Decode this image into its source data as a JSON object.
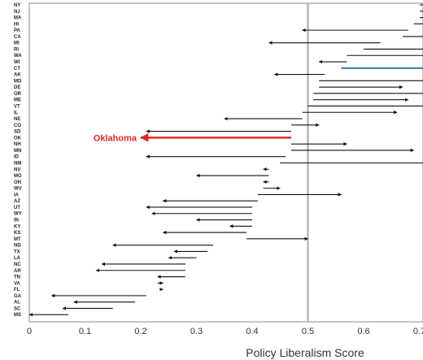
{
  "chart_data": {
    "type": "arrow-range",
    "xlabel": "Policy Liberalism Score",
    "xlim": [
      0,
      0.7
    ],
    "xticks": [
      "0",
      "0.1",
      "0.2",
      "0.3",
      "0.4",
      "0.5",
      "0.6",
      "0.7"
    ],
    "reference_line": 0.5,
    "highlight": {
      "state": "OK",
      "label": "Oklahoma",
      "color": "#e32626"
    },
    "colors": {
      "arrow": "#111111",
      "ct": "#2d6ea5",
      "reference": "#b8b8b8",
      "frame": "#888888"
    },
    "states": [
      {
        "state": "NY",
        "from": 0.71,
        "to": 0.71
      },
      {
        "state": "NJ",
        "from": 0.71,
        "to": 0.71
      },
      {
        "state": "MA",
        "from": 0.71,
        "to": 0.71
      },
      {
        "state": "HI",
        "from": 0.69,
        "to": 0.71
      },
      {
        "state": "PA",
        "from": 0.68,
        "to": 0.49
      },
      {
        "state": "CA",
        "from": 0.67,
        "to": 0.71
      },
      {
        "state": "MI",
        "from": 0.63,
        "to": 0.43
      },
      {
        "state": "RI",
        "from": 0.6,
        "to": 0.71
      },
      {
        "state": "WA",
        "from": 0.57,
        "to": 0.71
      },
      {
        "state": "WI",
        "from": 0.57,
        "to": 0.52
      },
      {
        "state": "CT",
        "from": 0.56,
        "to": 0.71
      },
      {
        "state": "AK",
        "from": 0.53,
        "to": 0.44
      },
      {
        "state": "MD",
        "from": 0.52,
        "to": 0.71
      },
      {
        "state": "DE",
        "from": 0.52,
        "to": 0.67
      },
      {
        "state": "OR",
        "from": 0.51,
        "to": 0.71
      },
      {
        "state": "ME",
        "from": 0.51,
        "to": 0.68
      },
      {
        "state": "VT",
        "from": 0.5,
        "to": 0.71
      },
      {
        "state": "IL",
        "from": 0.49,
        "to": 0.66
      },
      {
        "state": "NE",
        "from": 0.49,
        "to": 0.35
      },
      {
        "state": "CO",
        "from": 0.47,
        "to": 0.52
      },
      {
        "state": "SD",
        "from": 0.47,
        "to": 0.21
      },
      {
        "state": "OK",
        "from": 0.47,
        "to": 0.2
      },
      {
        "state": "NH",
        "from": 0.47,
        "to": 0.57
      },
      {
        "state": "MN",
        "from": 0.47,
        "to": 0.69
      },
      {
        "state": "ID",
        "from": 0.46,
        "to": 0.21
      },
      {
        "state": "NM",
        "from": 0.45,
        "to": 0.71
      },
      {
        "state": "NV",
        "from": 0.43,
        "to": 0.42
      },
      {
        "state": "MO",
        "from": 0.43,
        "to": 0.3
      },
      {
        "state": "OH",
        "from": 0.43,
        "to": 0.42
      },
      {
        "state": "WV",
        "from": 0.42,
        "to": 0.45
      },
      {
        "state": "IA",
        "from": 0.41,
        "to": 0.56
      },
      {
        "state": "AZ",
        "from": 0.41,
        "to": 0.24
      },
      {
        "state": "UT",
        "from": 0.4,
        "to": 0.21
      },
      {
        "state": "WY",
        "from": 0.4,
        "to": 0.22
      },
      {
        "state": "IN",
        "from": 0.4,
        "to": 0.3
      },
      {
        "state": "KY",
        "from": 0.4,
        "to": 0.36
      },
      {
        "state": "KS",
        "from": 0.39,
        "to": 0.24
      },
      {
        "state": "MT",
        "from": 0.39,
        "to": 0.5
      },
      {
        "state": "ND",
        "from": 0.33,
        "to": 0.15
      },
      {
        "state": "TX",
        "from": 0.32,
        "to": 0.26
      },
      {
        "state": "LA",
        "from": 0.3,
        "to": 0.25
      },
      {
        "state": "NC",
        "from": 0.28,
        "to": 0.13
      },
      {
        "state": "AR",
        "from": 0.28,
        "to": 0.12
      },
      {
        "state": "TN",
        "from": 0.28,
        "to": 0.23
      },
      {
        "state": "VA",
        "from": 0.23,
        "to": 0.24
      },
      {
        "state": "FL",
        "from": 0.24,
        "to": 0.24
      },
      {
        "state": "GA",
        "from": 0.21,
        "to": 0.04
      },
      {
        "state": "AL",
        "from": 0.19,
        "to": 0.08
      },
      {
        "state": "SC",
        "from": 0.15,
        "to": 0.06
      },
      {
        "state": "MS",
        "from": 0.07,
        "to": 0.0
      }
    ]
  }
}
